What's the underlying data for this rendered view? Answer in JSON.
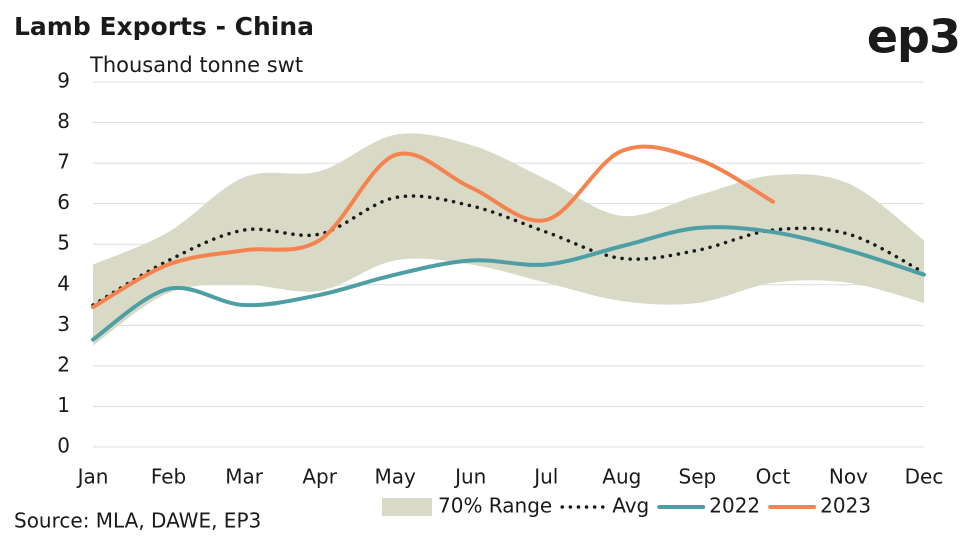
{
  "chart_data": {
    "type": "line",
    "title": "Lamb Exports - China",
    "logo": "ep3",
    "y_label": "Thousand tonne swt",
    "source": "Source: MLA, DAWE, EP3",
    "categories": [
      "Jan",
      "Feb",
      "Mar",
      "Apr",
      "May",
      "Jun",
      "Jul",
      "Aug",
      "Sep",
      "Oct",
      "Nov",
      "Dec"
    ],
    "range": {
      "name": "70% Range",
      "color": "#d9dac6",
      "upper": [
        4.5,
        5.3,
        6.65,
        6.8,
        7.7,
        7.45,
        6.6,
        5.7,
        6.2,
        6.7,
        6.5,
        5.1
      ],
      "lower": [
        2.5,
        3.8,
        4.0,
        3.85,
        4.6,
        4.5,
        4.05,
        3.6,
        3.55,
        4.05,
        4.05,
        3.55
      ]
    },
    "series": [
      {
        "name": "Avg",
        "color": "#1a1a1a",
        "dotted": true,
        "values": [
          3.5,
          4.6,
          5.35,
          5.25,
          6.15,
          5.95,
          5.3,
          4.65,
          4.85,
          5.35,
          5.25,
          4.3
        ]
      },
      {
        "name": "2022",
        "color": "#4e9ea5",
        "values": [
          2.65,
          3.9,
          3.5,
          3.75,
          4.25,
          4.6,
          4.5,
          4.95,
          5.4,
          5.3,
          4.85,
          4.25
        ]
      },
      {
        "name": "2023",
        "color": "#f4834f",
        "values": [
          3.45,
          4.5,
          4.85,
          5.1,
          7.2,
          6.4,
          5.6,
          7.3,
          7.1,
          6.05,
          null,
          null
        ]
      }
    ],
    "ylim": [
      0,
      9
    ],
    "yticks": [
      0,
      1,
      2,
      3,
      4,
      5,
      6,
      7,
      8,
      9
    ],
    "grid": true
  }
}
